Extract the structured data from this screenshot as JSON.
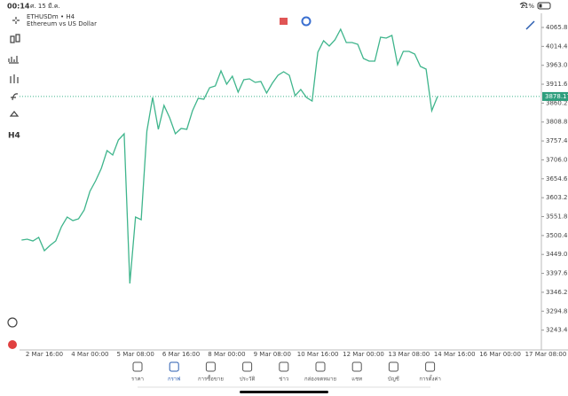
{
  "status_bar": {
    "time": "00:14",
    "date": "ศ. 15 มี.ค.",
    "battery": "21%"
  },
  "toolbar": {
    "timeframe": "H4"
  },
  "chart_data": {
    "type": "line",
    "title": "ETHUSDm • H4",
    "subtitle": "Ethereum vs US Dollar",
    "categories": [
      null,
      null,
      null,
      null,
      "2 Mar 16:00",
      null,
      null,
      null,
      null,
      null,
      null,
      null,
      "4 Mar 00:00",
      null,
      null,
      null,
      null,
      null,
      null,
      null,
      "5 Mar 08:00",
      null,
      null,
      null,
      null,
      null,
      null,
      null,
      "6 Mar 16:00",
      null,
      null,
      null,
      null,
      null,
      null,
      null,
      "8 Mar 00:00",
      null,
      null,
      null,
      null,
      null,
      null,
      null,
      "9 Mar 08:00",
      null,
      null,
      null,
      null,
      null,
      null,
      null,
      "10 Mar 16:00",
      null,
      null,
      null,
      null,
      null,
      null,
      null,
      "12 Mar 00:00",
      null,
      null,
      null,
      null,
      null,
      null,
      null,
      "13 Mar 08:00",
      null,
      null,
      null,
      null,
      null,
      null,
      null,
      "14 Mar 16:00",
      null,
      null,
      null,
      null,
      null,
      null,
      null,
      "16 Mar 00:00",
      null,
      null,
      null,
      null,
      null,
      null,
      null,
      "17 Mar 08:00"
    ],
    "series": [
      {
        "name": "ETHUSDm",
        "color": "#3fb58c",
        "values": [
          3488.0,
          3490.4,
          3485.6,
          3495.2,
          3459.1,
          3473.6,
          3485.6,
          3524.1,
          3550.6,
          3541.0,
          3545.8,
          3569.9,
          3620.4,
          3649.3,
          3683.0,
          3731.2,
          3719.1,
          3760.0,
          3776.9,
          3370.0,
          3550.6,
          3543.4,
          3784.1,
          3875.6,
          3788.9,
          3853.9,
          3820.2,
          3776.9,
          3791.3,
          3788.9,
          3839.5,
          3873.2,
          3870.8,
          3902.1,
          3906.9,
          3947.8,
          3911.7,
          3933.4,
          3890.1,
          3923.8,
          3926.2,
          3916.5,
          3918.9,
          3887.6,
          3914.1,
          3935.8,
          3945.4,
          3935.8,
          3880.4,
          3897.3,
          3875.6,
          3866.0,
          3998.4,
          4029.7,
          4015.2,
          4032.1,
          4061.0,
          4024.9,
          4024.9,
          4020.1,
          3981.5,
          3974.3,
          3974.3,
          4039.3,
          4036.9,
          4044.1,
          3964.7,
          4000.8,
          4000.8,
          3993.6,
          3959.9,
          3952.6,
          3839.5,
          3878.17,
          null,
          null,
          null,
          null,
          null,
          null,
          null,
          null,
          null,
          null,
          null,
          null,
          null,
          null,
          null,
          null,
          null,
          null,
          null
        ]
      }
    ],
    "current_price": 3878.17,
    "ylim": [
      3189.5,
      4104.3
    ],
    "yticks": [
      {
        "value": 4065.8,
        "label": "4065.80"
      },
      {
        "value": 4014.4,
        "label": "4014.40"
      },
      {
        "value": 3963.0,
        "label": "3963.00"
      },
      {
        "value": 3911.6,
        "label": "3911.60"
      },
      {
        "value": 3860.2,
        "label": "3860.20"
      },
      {
        "value": 3808.8,
        "label": "3808.80"
      },
      {
        "value": 3757.4,
        "label": "3757.40"
      },
      {
        "value": 3706.0,
        "label": "3706.00"
      },
      {
        "value": 3654.6,
        "label": "3654.60"
      },
      {
        "value": 3603.2,
        "label": "3603.20"
      },
      {
        "value": 3551.8,
        "label": "3551.80"
      },
      {
        "value": 3500.4,
        "label": "3500.40"
      },
      {
        "value": 3449.0,
        "label": "3449.00"
      },
      {
        "value": 3397.6,
        "label": "3397.60"
      },
      {
        "value": 3346.2,
        "label": "3346.20"
      },
      {
        "value": 3294.8,
        "label": "3294.80"
      },
      {
        "value": 3243.4,
        "label": "3243.40"
      }
    ],
    "grid": false
  },
  "nav": [
    {
      "label": "ราคา"
    },
    {
      "label": "กราฟ"
    },
    {
      "label": "การซื้อขาย"
    },
    {
      "label": "ประวัติ"
    },
    {
      "label": "ข่าว"
    },
    {
      "label": "กล่องจดหมาย"
    },
    {
      "label": "แชท"
    },
    {
      "label": "บัญชี"
    },
    {
      "label": "การตั้งค่า"
    }
  ]
}
